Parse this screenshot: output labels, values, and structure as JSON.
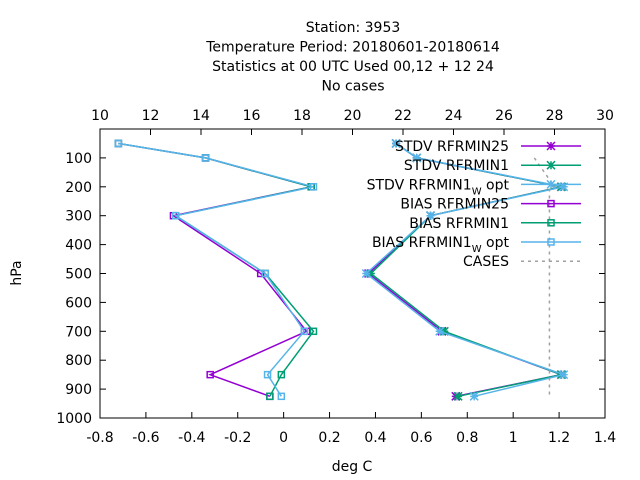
{
  "chart_data": {
    "type": "line",
    "title_lines": [
      "Station:     3953",
      "Temperature  Period: 20180601-20180614",
      "Statistics at 00 UTC  Used  00,12  + 12 24",
      "No cases"
    ],
    "xlabel": "deg C",
    "ylabel": "hPa",
    "xlim": [
      -0.8,
      1.4
    ],
    "x_ticks": [
      "-0.8",
      "-0.6",
      "-0.4",
      "-0.2",
      "0",
      "0.2",
      "0.4",
      "0.6",
      "0.8",
      "1",
      "1.2",
      "1.4"
    ],
    "x2lim": [
      10,
      30
    ],
    "x2_ticks": [
      "10",
      "12",
      "14",
      "16",
      "18",
      "20",
      "22",
      "24",
      "26",
      "28",
      "30"
    ],
    "ylim": [
      1000,
      0
    ],
    "y_ticks": [
      "100",
      "200",
      "300",
      "400",
      "500",
      "600",
      "700",
      "800",
      "900",
      "1000"
    ],
    "grid": false,
    "legend_position": "top-right",
    "series": [
      {
        "name": "STDV RFRMIN25",
        "color": "#9400d3",
        "marker": "star",
        "points": [
          [
            0.49,
            50
          ],
          [
            0.58,
            100
          ],
          [
            1.21,
            200
          ],
          [
            0.64,
            300
          ],
          [
            0.37,
            500
          ],
          [
            0.69,
            700
          ],
          [
            1.21,
            850
          ],
          [
            0.75,
            925
          ]
        ]
      },
      {
        "name": "STDV RFRMIN1",
        "color": "#009e73",
        "marker": "star",
        "points": [
          [
            0.49,
            50
          ],
          [
            0.58,
            100
          ],
          [
            1.21,
            200
          ],
          [
            0.64,
            300
          ],
          [
            0.38,
            500
          ],
          [
            0.7,
            700
          ],
          [
            1.21,
            850
          ],
          [
            0.76,
            925
          ]
        ]
      },
      {
        "name": "STDV RFRMIN1",
        "sub": "W",
        "suffix": " opt",
        "color": "#56b4e9",
        "marker": "star",
        "points": [
          [
            0.49,
            50
          ],
          [
            0.58,
            100
          ],
          [
            1.22,
            200
          ],
          [
            0.64,
            300
          ],
          [
            0.36,
            500
          ],
          [
            0.68,
            700
          ],
          [
            1.22,
            850
          ],
          [
            0.83,
            925
          ]
        ]
      },
      {
        "name": "BIAS RFRMIN25",
        "color": "#9400d3",
        "marker": "square",
        "points": [
          [
            -0.72,
            50
          ],
          [
            -0.34,
            100
          ],
          [
            0.12,
            200
          ],
          [
            -0.48,
            300
          ],
          [
            -0.1,
            500
          ],
          [
            0.1,
            700
          ],
          [
            -0.32,
            850
          ],
          [
            -0.06,
            925
          ]
        ]
      },
      {
        "name": "BIAS RFRMIN1",
        "color": "#009e73",
        "marker": "square",
        "points": [
          [
            -0.72,
            50
          ],
          [
            -0.34,
            100
          ],
          [
            0.12,
            200
          ],
          [
            -0.47,
            300
          ],
          [
            -0.08,
            500
          ],
          [
            0.13,
            700
          ],
          [
            -0.01,
            850
          ],
          [
            -0.06,
            925
          ]
        ]
      },
      {
        "name": "BIAS RFRMIN1",
        "sub": "W",
        "suffix": " opt",
        "color": "#56b4e9",
        "marker": "square",
        "points": [
          [
            -0.72,
            50
          ],
          [
            -0.34,
            100
          ],
          [
            0.13,
            200
          ],
          [
            -0.47,
            300
          ],
          [
            -0.08,
            500
          ],
          [
            0.09,
            700
          ],
          [
            -0.07,
            850
          ],
          [
            -0.01,
            925
          ]
        ]
      },
      {
        "name": "CASES",
        "color": "#a0a0a0",
        "dash": true,
        "axis": "x2",
        "points": [
          [
            27.2,
            100
          ],
          [
            28.0,
            200
          ],
          [
            27.8,
            200
          ],
          [
            27.8,
            925
          ]
        ]
      }
    ]
  }
}
